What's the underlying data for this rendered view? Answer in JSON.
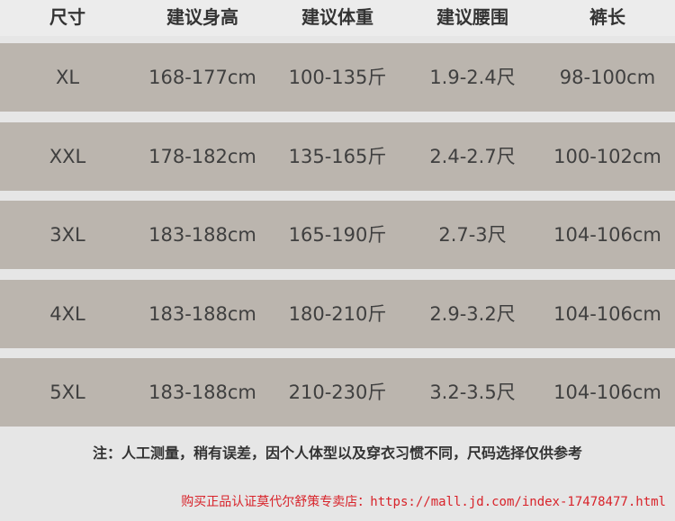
{
  "table": {
    "header": [
      "尺寸",
      "建议身高",
      "建议体重",
      "建议腰围",
      "裤长"
    ],
    "rows": [
      [
        "XL",
        "168-177cm",
        "100-135斤",
        "1.9-2.4尺",
        "98-100cm"
      ],
      [
        "XXL",
        "178-182cm",
        "135-165斤",
        "2.4-2.7尺",
        "100-102cm"
      ],
      [
        "3XL",
        "183-188cm",
        "165-190斤",
        "2.7-3尺",
        "104-106cm"
      ],
      [
        "4XL",
        "183-188cm",
        "180-210斤",
        "2.9-3.2尺",
        "104-106cm"
      ],
      [
        "5XL",
        "183-188cm",
        "210-230斤",
        "3.2-3.5尺",
        "104-106cm"
      ]
    ]
  },
  "note": "注：人工测量，稍有误差，因个人体型以及穿衣习惯不同，尺码选择仅供参考",
  "footer": "购买正品认证莫代尔舒策专卖店：https://mall.jd.com/index-17478477.html"
}
